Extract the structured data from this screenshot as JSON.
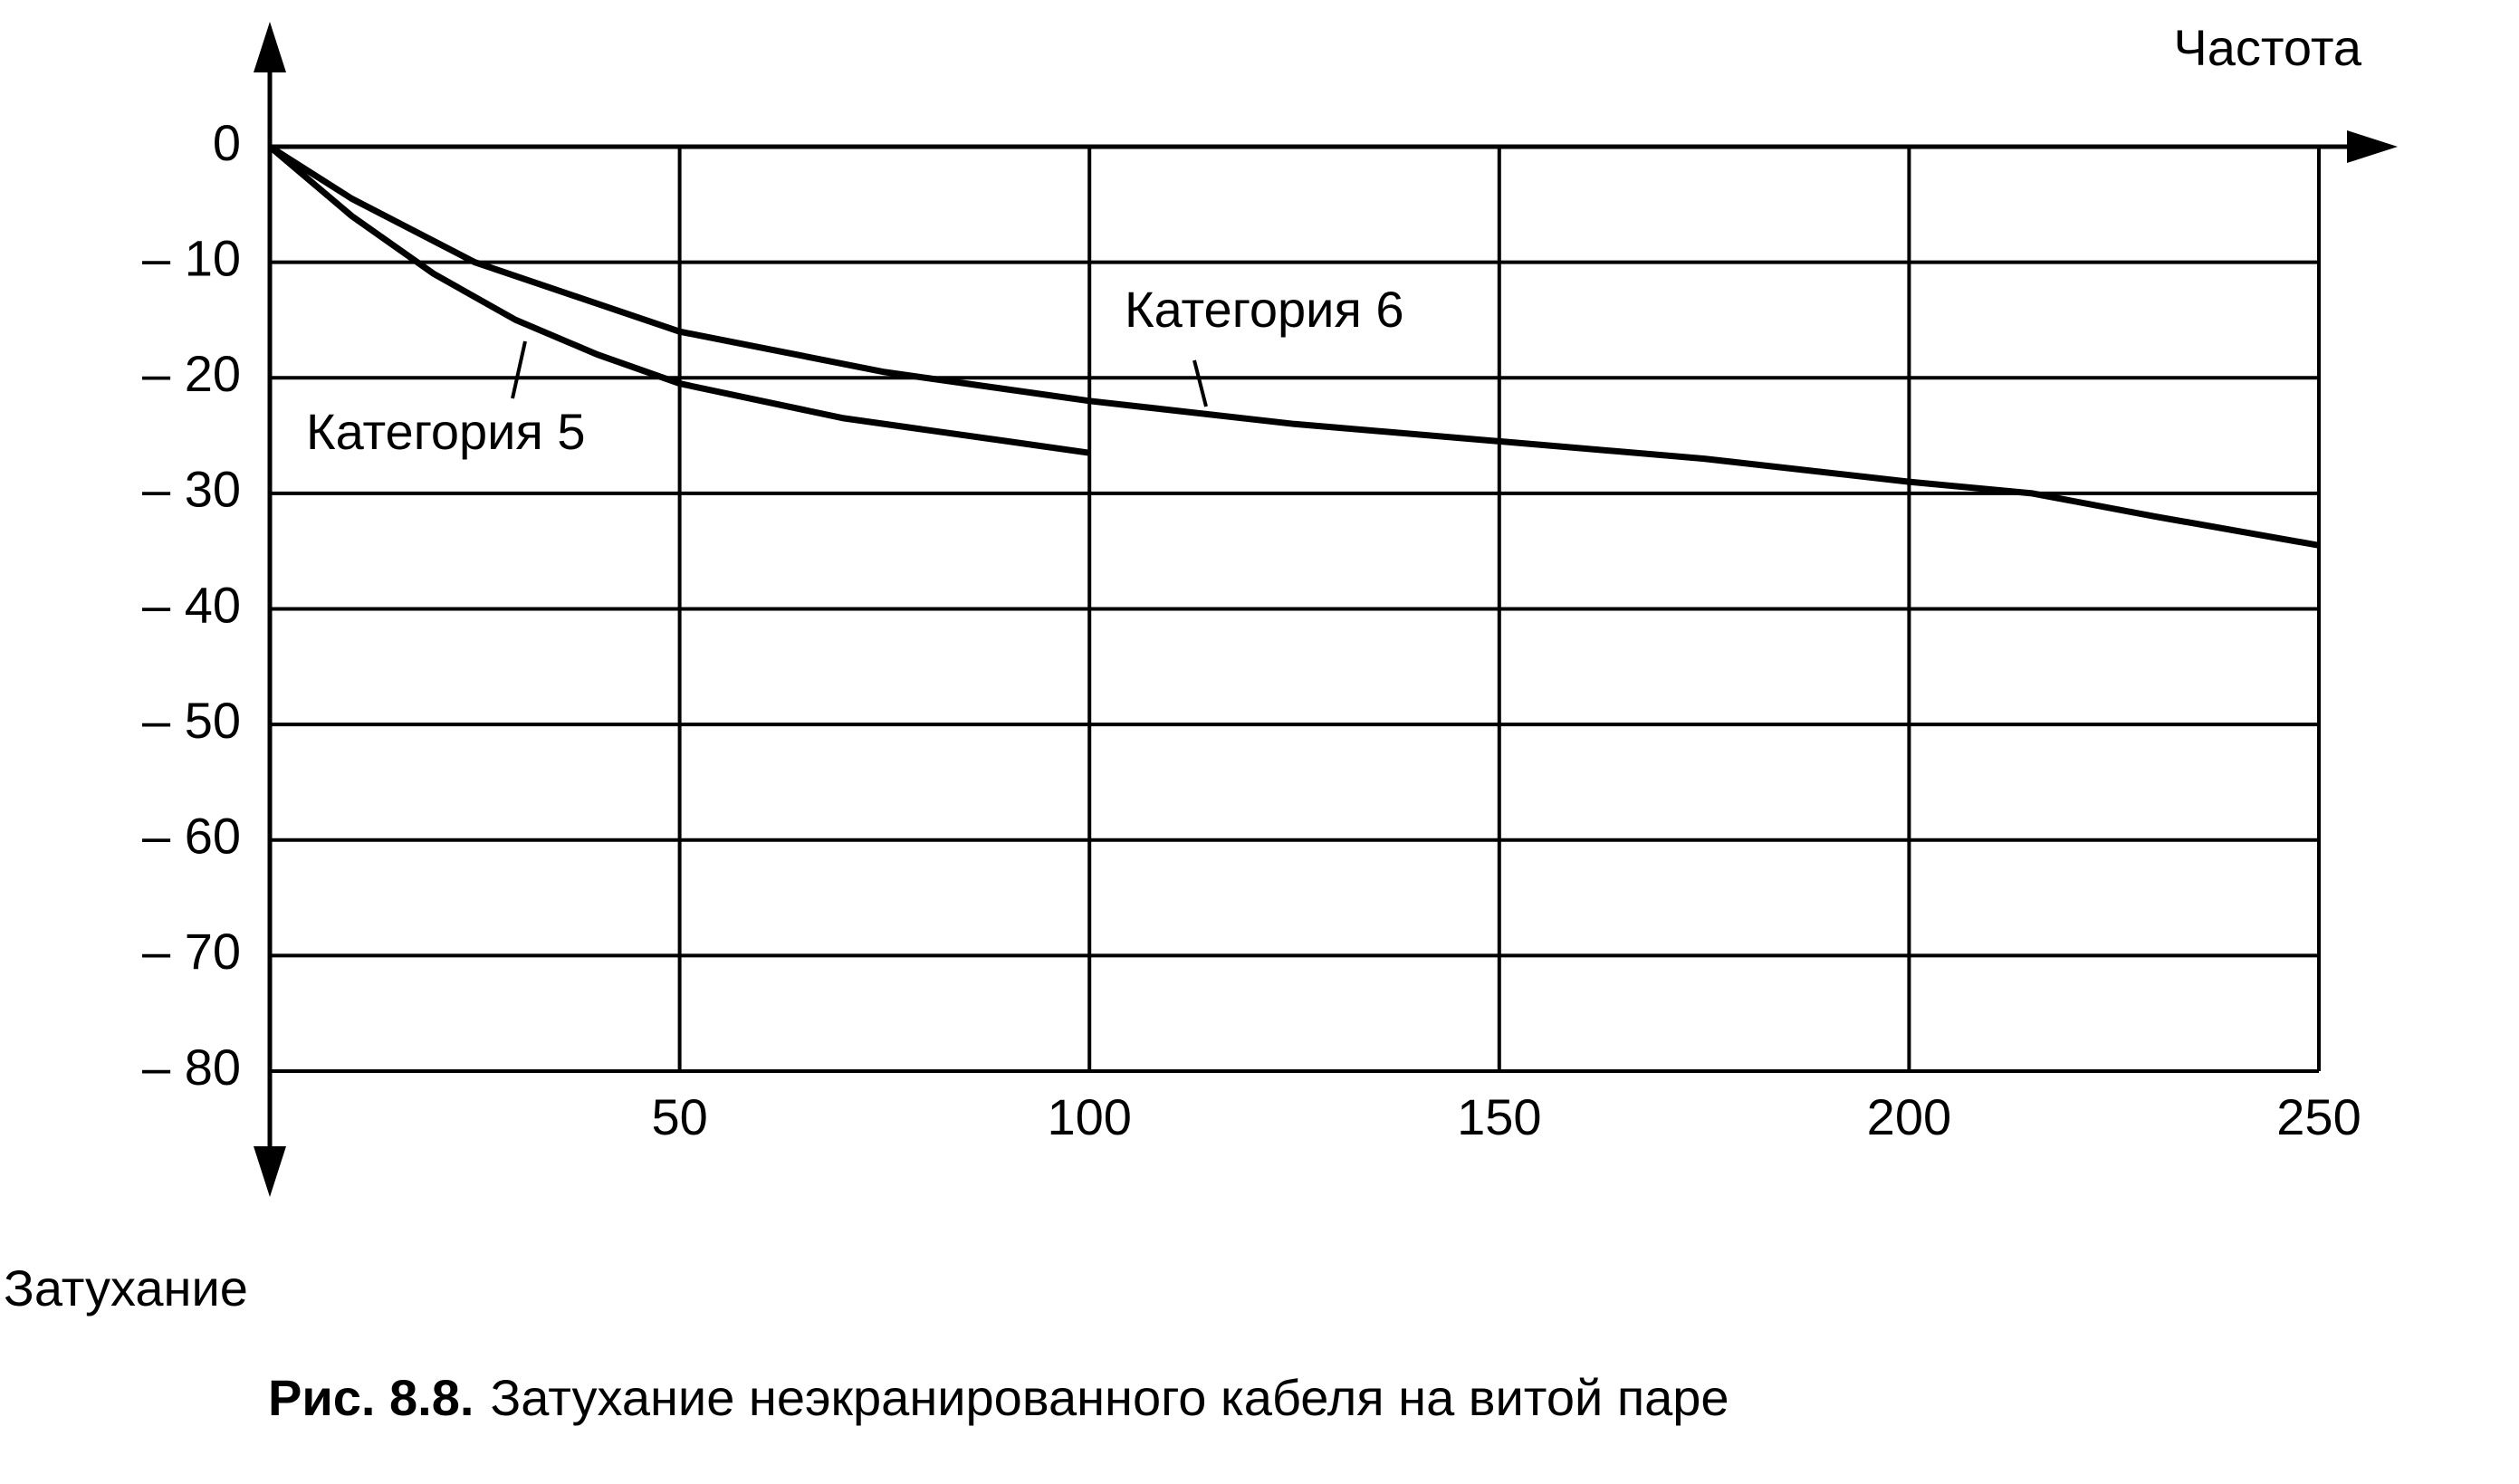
{
  "chart_data": {
    "type": "line",
    "x_label": "Частота",
    "y_label": "Затухание",
    "caption": {
      "label": "Рис. 8.8.",
      "text": "Затухание неэкранированного кабеля на витой паре"
    },
    "xlim": [
      0,
      250
    ],
    "xticks": [
      50,
      100,
      150,
      200,
      250
    ],
    "ylim": [
      -80,
      0
    ],
    "yticks": [
      0,
      {
        "value": -10,
        "label": "– 10"
      },
      {
        "value": -20,
        "label": "– 20"
      },
      {
        "value": -30,
        "label": "– 30"
      },
      {
        "value": -40,
        "label": "– 40"
      },
      {
        "value": -50,
        "label": "– 50"
      },
      {
        "value": -60,
        "label": "– 60"
      },
      {
        "value": -70,
        "label": "– 70"
      },
      {
        "value": -80,
        "label": "– 80"
      }
    ],
    "grid": true,
    "series": [
      {
        "name": "Категория 5",
        "color": "#000000",
        "x": [
          0,
          10,
          20,
          30,
          40,
          50,
          60,
          70,
          80,
          90,
          100
        ],
        "values": [
          0,
          -6,
          -11,
          -15,
          -18,
          -20.5,
          -22,
          -23.5,
          -24.5,
          -25.5,
          -26.5
        ]
      },
      {
        "name": "Категория 6",
        "color": "#000000",
        "x": [
          0,
          10,
          25,
          50,
          75,
          100,
          125,
          150,
          175,
          200,
          215,
          230,
          250
        ],
        "values": [
          0,
          -4.5,
          -10,
          -16,
          -19.5,
          -22,
          -24,
          -25.5,
          -27,
          -29,
          -30,
          -32,
          -34.5
        ]
      }
    ]
  }
}
